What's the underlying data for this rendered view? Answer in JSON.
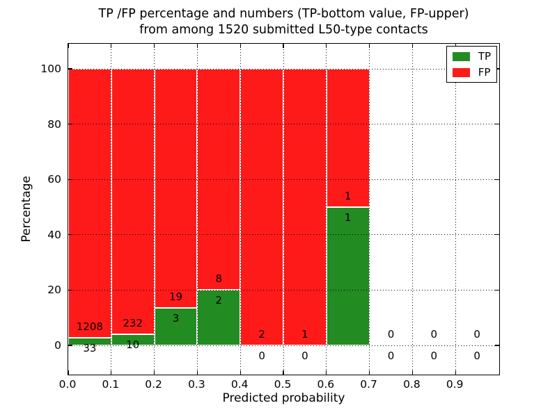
{
  "chart_data": {
    "type": "bar",
    "stacked": true,
    "title_line1": "TP /FP percentage and numbers (TP-bottom value, FP-upper)",
    "title_line2": "from among 1520 submitted L50-type contacts",
    "total_submitted": 1520,
    "xlabel": "Predicted probability",
    "ylabel": "Percentage",
    "categories": [
      "0.0-0.1",
      "0.1-0.2",
      "0.2-0.3",
      "0.3-0.4",
      "0.4-0.5",
      "0.5-0.6",
      "0.6-0.7",
      "0.7-0.8",
      "0.8-0.9",
      "0.9-1.0"
    ],
    "x_tick_labels": [
      "0.0",
      "0.1",
      "0.2",
      "0.3",
      "0.4",
      "0.5",
      "0.6",
      "0.7",
      "0.8",
      "0.9"
    ],
    "y_ticks": [
      0,
      20,
      40,
      60,
      80,
      100
    ],
    "xlim": [
      0.0,
      1.0
    ],
    "ylim": [
      -11,
      109
    ],
    "grid": "dotted, drawn above bars",
    "legend_position": "upper right",
    "series": [
      {
        "name": "TP",
        "color": "#228b22",
        "counts": [
          33,
          10,
          3,
          2,
          0,
          0,
          1,
          0,
          0,
          0
        ],
        "pct": [
          2.66,
          4.13,
          13.64,
          20.0,
          0,
          0,
          50.0,
          0,
          0,
          0
        ]
      },
      {
        "name": "FP",
        "color": "#ff1a1a",
        "counts": [
          1208,
          232,
          19,
          8,
          2,
          1,
          1,
          0,
          0,
          0
        ],
        "pct": [
          97.34,
          95.87,
          86.36,
          80.0,
          100,
          100,
          50.0,
          0,
          0,
          0
        ]
      }
    ],
    "annotation_rule": "FP count printed above TP/FP boundary, TP count printed below boundary",
    "colors": {
      "background": "#ffffff",
      "grid": "#000000",
      "text": "#000000",
      "bar_edge": "#ffffff",
      "tp": "#228b22",
      "fp": "#ff1a1a"
    }
  }
}
